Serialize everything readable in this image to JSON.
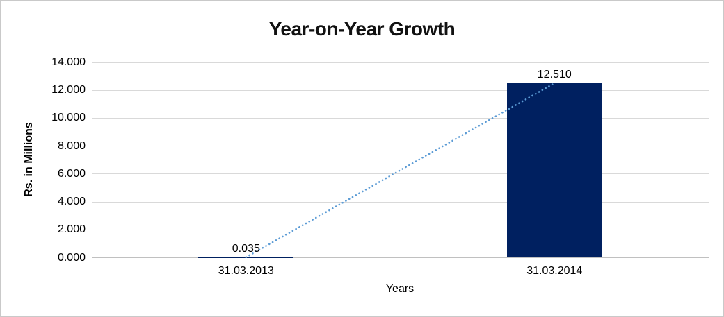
{
  "window": {
    "background_color": "#FFFFFF",
    "border_color": "#C9C9C9"
  },
  "chart_data": {
    "type": "bar",
    "title": "Year-on-Year Growth",
    "categories": [
      "31.03.2013",
      "31.03.2014"
    ],
    "values": [
      0.035,
      12.51
    ],
    "data_labels": [
      "0.035",
      "12.510"
    ],
    "xlabel": "Years",
    "ylabel": "Rs. in Millions",
    "ylim": [
      0,
      14
    ],
    "yticks": [
      0,
      2,
      4,
      6,
      8,
      10,
      12,
      14
    ],
    "ytick_labels": [
      "0.000",
      "2.000",
      "4.000",
      "6.000",
      "8.000",
      "10.000",
      "12.000",
      "14.000"
    ],
    "grid": true,
    "legend_position": "none",
    "bar_color": "#002060",
    "gridline_color": "#D9D9D9",
    "trendline": {
      "type": "linear",
      "line_style": "dotted",
      "color": "#5B9BD5",
      "from_value": 0.035,
      "to_value": 12.51
    }
  }
}
